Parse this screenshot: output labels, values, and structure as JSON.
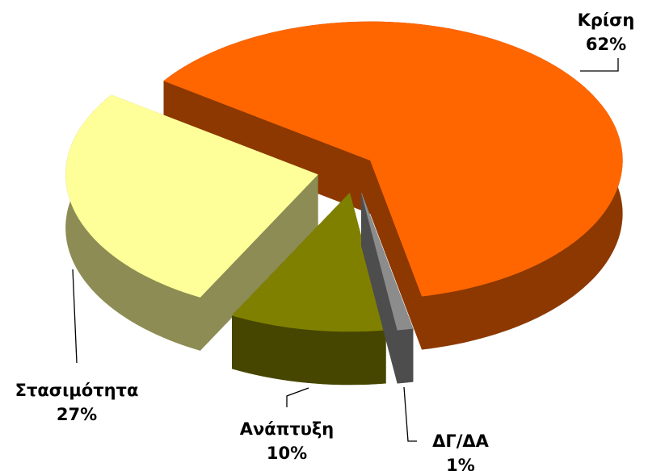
{
  "chart_data": {
    "type": "pie3d",
    "categories": [
      "Κρίση",
      "ΔΓ/ΔΑ",
      "Ανάπτυξη",
      "Στασιμότητα"
    ],
    "values": [
      62,
      1,
      10,
      27
    ],
    "value_labels": [
      "62%",
      "1%",
      "10%",
      "27%"
    ],
    "colors": [
      "#ff6600",
      "#8c8c8c",
      "#808000",
      "#ffff99"
    ]
  }
}
